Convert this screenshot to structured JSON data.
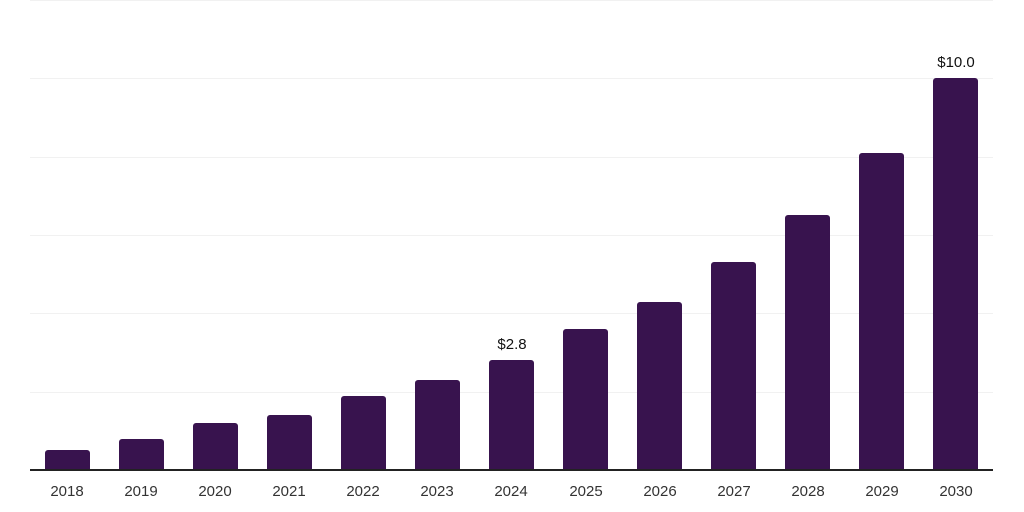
{
  "chart_data": {
    "type": "bar",
    "categories": [
      "2018",
      "2019",
      "2020",
      "2021",
      "2022",
      "2023",
      "2024",
      "2025",
      "2026",
      "2027",
      "2028",
      "2029",
      "2030"
    ],
    "values": [
      0.5,
      0.8,
      1.2,
      1.4,
      1.9,
      2.3,
      2.8,
      3.6,
      4.3,
      5.3,
      6.5,
      8.1,
      10.0
    ],
    "value_labels": [
      {
        "category": "2024",
        "text": "$2.8"
      },
      {
        "category": "2030",
        "text": "$10.0"
      }
    ],
    "xlabel": "",
    "ylabel": "",
    "ylim": [
      0,
      12
    ],
    "gridline_step": 2,
    "grid": "horizontal",
    "y_axis_labels_visible": false,
    "legend": "none",
    "colors": {
      "bar": "#38134E",
      "axis_line": "#222222",
      "gridline": "#F1F1F1",
      "tick_label": "#333333",
      "value_label": "#111111",
      "background": "#FFFFFF"
    }
  }
}
